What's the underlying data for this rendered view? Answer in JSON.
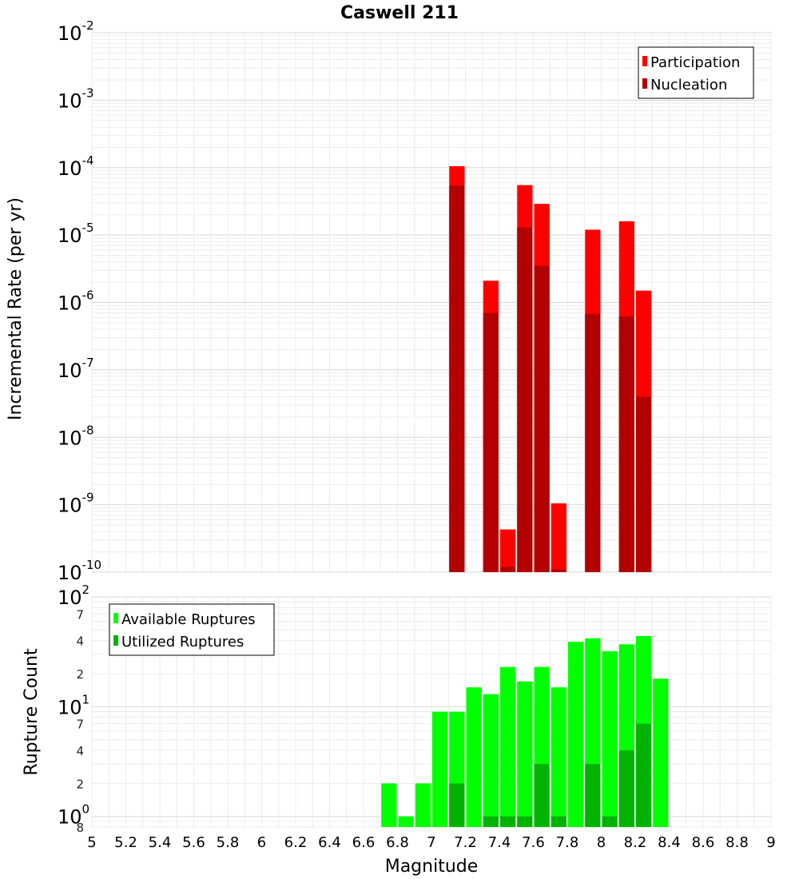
{
  "chart_data": [
    {
      "type": "bar",
      "title": "Caswell 211",
      "xlabel": "",
      "ylabel": "Incremental Rate (per yr)",
      "y_scale": "log",
      "ylim": [
        1e-10,
        0.01
      ],
      "xlim": [
        5,
        9
      ],
      "grid": true,
      "legend_position": "top-right",
      "y_tick_labels": [
        {
          "mantissa": "10",
          "exponent": "-2"
        },
        {
          "mantissa": "10",
          "exponent": "-3"
        },
        {
          "mantissa": "10",
          "exponent": "-4"
        },
        {
          "mantissa": "10",
          "exponent": "-5"
        },
        {
          "mantissa": "10",
          "exponent": "-6"
        },
        {
          "mantissa": "10",
          "exponent": "-7"
        },
        {
          "mantissa": "10",
          "exponent": "-8"
        },
        {
          "mantissa": "10",
          "exponent": "-9"
        },
        {
          "mantissa": "10",
          "exponent": "-10"
        }
      ],
      "x": [
        7.15,
        7.35,
        7.45,
        7.55,
        7.65,
        7.75,
        7.95,
        8.15,
        8.25
      ],
      "series": [
        {
          "name": "Participation",
          "color": "#ff0000",
          "values": [
            0.000105,
            2.1e-06,
            4.3e-10,
            5.5e-05,
            2.9e-05,
            1.05e-09,
            1.2e-05,
            1.6e-05,
            1.5e-06
          ]
        },
        {
          "name": "Nucleation",
          "color": "#b30000",
          "values": [
            5.4e-05,
            7e-07,
            1.2e-10,
            1.3e-05,
            3.5e-06,
            1.1e-10,
            6.8e-07,
            6.2e-07,
            4e-08
          ]
        }
      ]
    },
    {
      "type": "bar",
      "title": "",
      "xlabel": "Magnitude",
      "ylabel": "Rupture Count",
      "y_scale": "log",
      "ylim": [
        0.8,
        100
      ],
      "xlim": [
        5,
        9
      ],
      "grid": true,
      "legend_position": "top-left",
      "x_ticks": [
        5,
        5.2,
        5.4,
        5.6,
        5.8,
        6,
        6.2,
        6.4,
        6.6,
        6.8,
        7,
        7.2,
        7.4,
        7.6,
        7.8,
        8,
        8.2,
        8.4,
        8.6,
        8.8,
        9
      ],
      "x_tick_labels": [
        "5",
        "5.2",
        "5.4",
        "5.6",
        "5.8",
        "6",
        "6.2",
        "6.4",
        "6.6",
        "6.8",
        "7",
        "7.2",
        "7.4",
        "7.6",
        "7.8",
        "8",
        "8.2",
        "8.4",
        "8.6",
        "8.8",
        "9"
      ],
      "y_major_tick_labels": [
        {
          "value": 100,
          "mantissa": "10",
          "exponent": "2"
        },
        {
          "value": 10,
          "mantissa": "10",
          "exponent": "1"
        },
        {
          "value": 1,
          "mantissa": "10",
          "exponent": "0"
        }
      ],
      "y_minor_tick_labels": [
        {
          "value": 70,
          "label": "7"
        },
        {
          "value": 40,
          "label": "4"
        },
        {
          "value": 20,
          "label": "2"
        },
        {
          "value": 7,
          "label": "7"
        },
        {
          "value": 4,
          "label": "4"
        },
        {
          "value": 2,
          "label": "2"
        },
        {
          "value": 0.8,
          "label": "8"
        }
      ],
      "x": [
        6.75,
        6.85,
        6.95,
        7.05,
        7.15,
        7.25,
        7.35,
        7.45,
        7.55,
        7.65,
        7.75,
        7.85,
        7.95,
        8.05,
        8.15,
        8.25,
        8.35
      ],
      "series": [
        {
          "name": "Available Ruptures",
          "color": "#00ff00",
          "values": [
            2,
            1,
            2,
            9,
            9,
            15,
            13,
            23,
            17,
            23,
            15,
            39,
            42,
            32,
            37,
            44,
            18
          ]
        },
        {
          "name": "Utilized Ruptures",
          "color": "#00b300",
          "values": [
            0,
            0,
            0,
            0,
            2,
            0,
            1,
            1,
            1,
            3,
            1,
            0,
            3,
            1,
            4,
            7,
            0
          ]
        }
      ]
    }
  ]
}
